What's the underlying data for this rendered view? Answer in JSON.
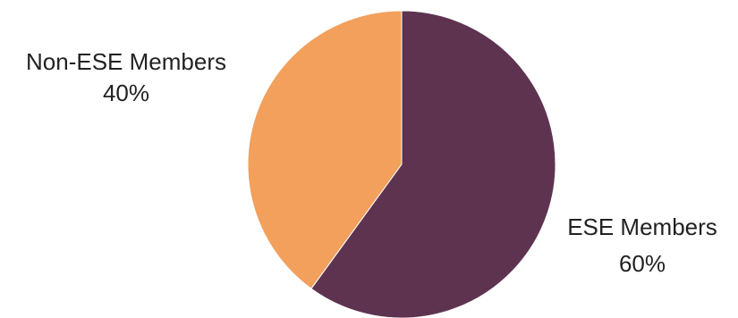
{
  "chart_data": {
    "type": "pie",
    "title": "",
    "slices": [
      {
        "label": "ESE Members",
        "value": 60,
        "value_label": "60%",
        "color": "#5e3350"
      },
      {
        "label": "Non-ESE Members",
        "value": 40,
        "value_label": "40%",
        "color": "#f2a05c"
      }
    ],
    "start_angle_deg": 0,
    "direction": "clockwise"
  }
}
